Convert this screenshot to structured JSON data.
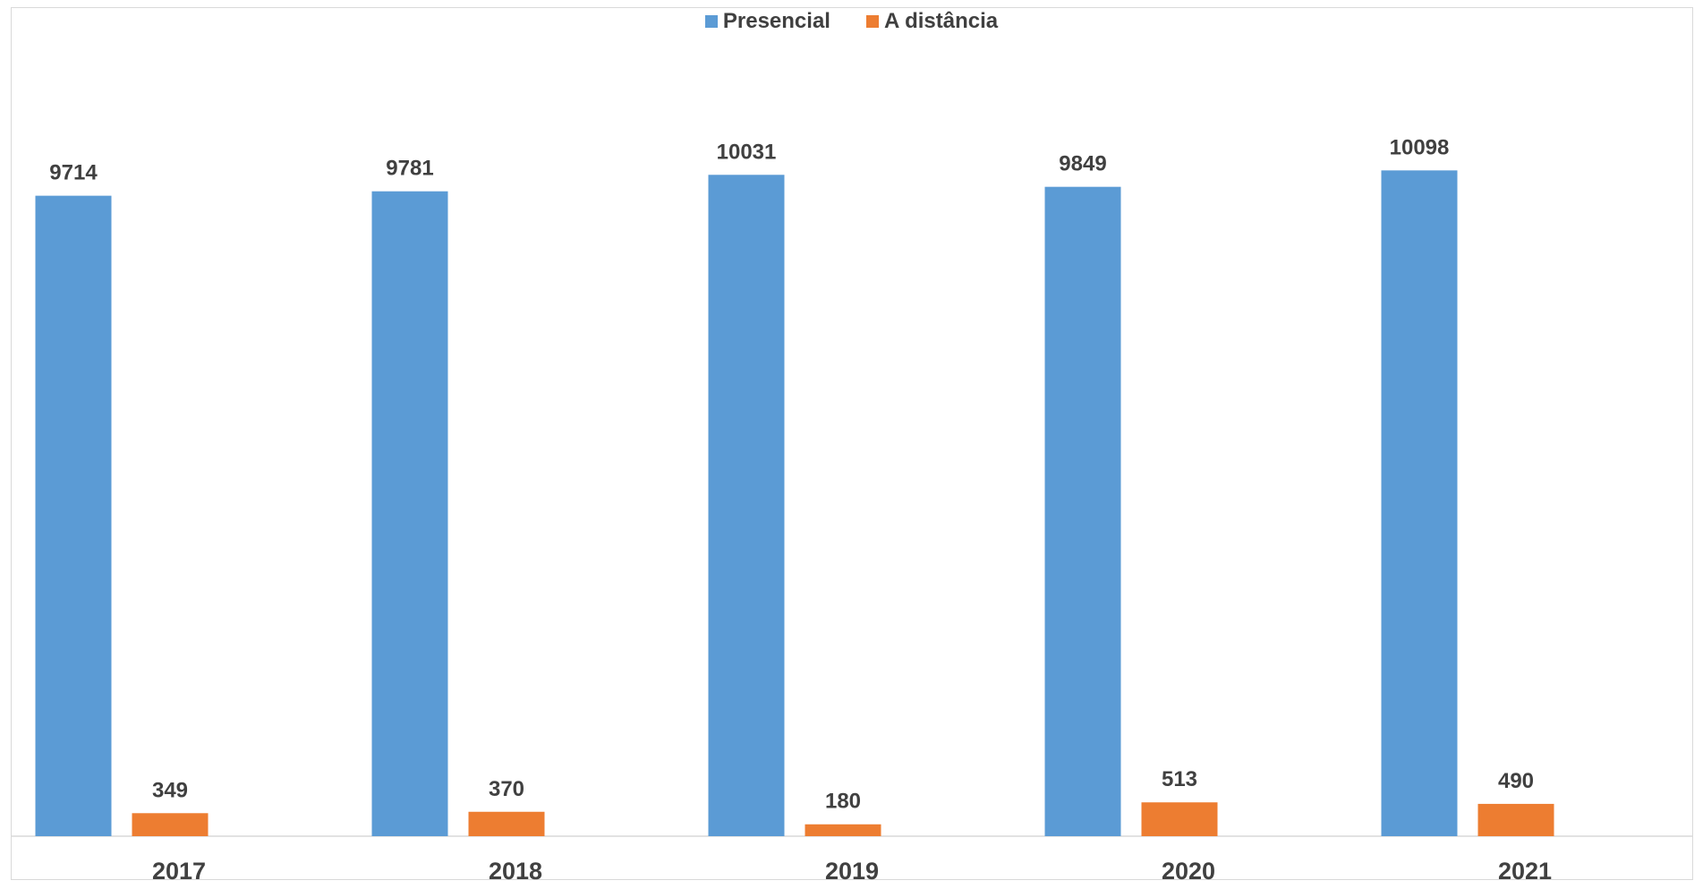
{
  "chart_data": {
    "type": "bar",
    "categories": [
      "2017",
      "2018",
      "2019",
      "2020",
      "2021"
    ],
    "series": [
      {
        "name": "Presencial",
        "values": [
          9714,
          9781,
          10031,
          9849,
          10098
        ],
        "color": "#5b9bd5"
      },
      {
        "name": "A distância",
        "values": [
          349,
          370,
          180,
          513,
          490
        ],
        "color": "#ed7d31"
      }
    ],
    "ylim": [
      0,
      11800
    ],
    "grid": false,
    "legend_position": "top"
  }
}
